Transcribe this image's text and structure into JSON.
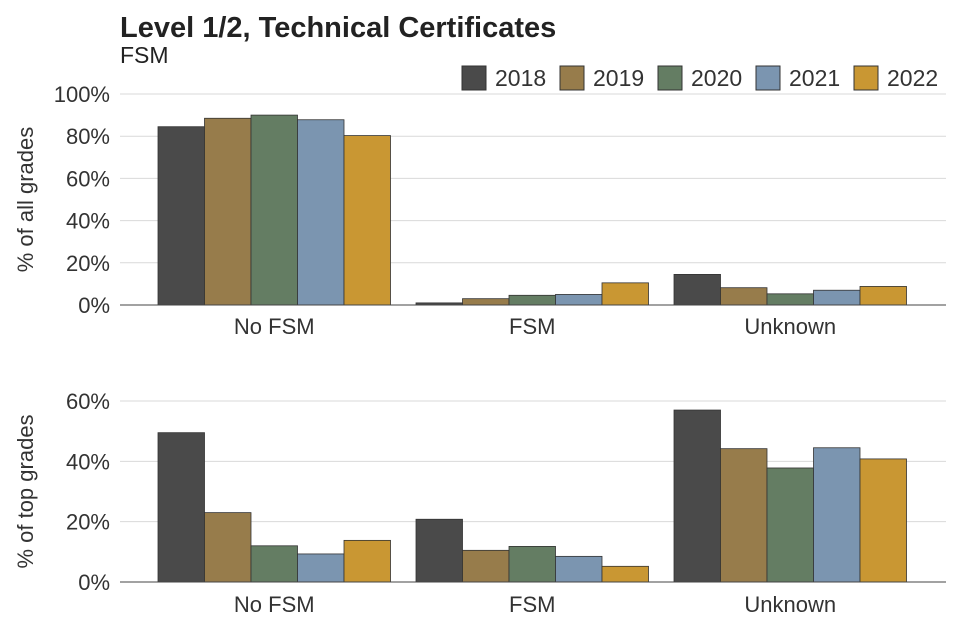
{
  "title": "Level 1/2, Technical Certificates",
  "subtitle": "FSM",
  "legend": [
    "2018",
    "2019",
    "2020",
    "2021",
    "2022"
  ],
  "colors": {
    "2018": "#4a4a4a",
    "2019": "#977c4b",
    "2020": "#647d63",
    "2021": "#7b95b0",
    "2022": "#c99733"
  },
  "chart_data": [
    {
      "type": "bar",
      "ylabel": "% of all grades",
      "ylim": [
        0,
        100
      ],
      "yticks": [
        0,
        20,
        40,
        60,
        80,
        100
      ],
      "ytick_labels": [
        "0%",
        "20%",
        "40%",
        "60%",
        "80%",
        "100%"
      ],
      "categories": [
        "No FSM",
        "FSM",
        "Unknown"
      ],
      "series": [
        {
          "name": "2018",
          "values": [
            84.5,
            1.0,
            14.5
          ]
        },
        {
          "name": "2019",
          "values": [
            88.5,
            3.0,
            8.2
          ]
        },
        {
          "name": "2020",
          "values": [
            90.0,
            4.6,
            5.3
          ]
        },
        {
          "name": "2021",
          "values": [
            87.8,
            5.0,
            7.0
          ]
        },
        {
          "name": "2022",
          "values": [
            80.3,
            10.5,
            8.8
          ]
        }
      ],
      "grid": true,
      "legend_position": "top-right"
    },
    {
      "type": "bar",
      "ylabel": "% of top grades",
      "ylim": [
        0,
        60
      ],
      "yticks": [
        0,
        20,
        40,
        60
      ],
      "ytick_labels": [
        "0%",
        "20%",
        "40%",
        "60%"
      ],
      "categories": [
        "No FSM",
        "FSM",
        "Unknown"
      ],
      "series": [
        {
          "name": "2018",
          "values": [
            49.5,
            20.8,
            57.0
          ]
        },
        {
          "name": "2019",
          "values": [
            23.0,
            10.5,
            44.2
          ]
        },
        {
          "name": "2020",
          "values": [
            12.0,
            11.8,
            37.8
          ]
        },
        {
          "name": "2021",
          "values": [
            9.3,
            8.5,
            44.5
          ]
        },
        {
          "name": "2022",
          "values": [
            13.8,
            5.2,
            40.8
          ]
        }
      ],
      "grid": true
    }
  ]
}
